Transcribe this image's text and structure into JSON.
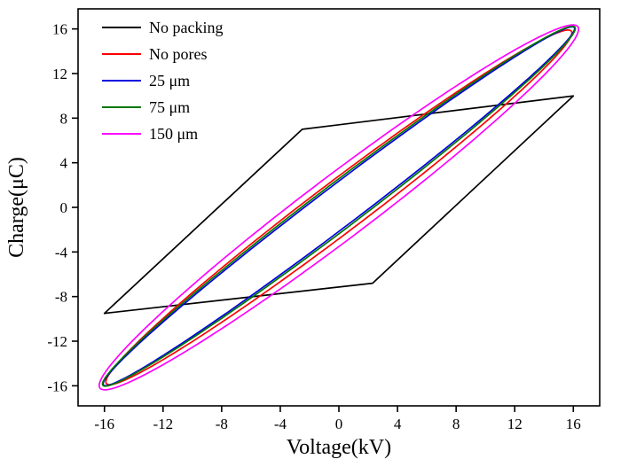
{
  "chart_data": {
    "type": "line",
    "title": "",
    "xlabel": "Voltage(kV)",
    "ylabel": "Charge(μC)",
    "xlim": [
      -17.8,
      17.8
    ],
    "ylim": [
      -17.8,
      17.8
    ],
    "xticks": [
      -16,
      -12,
      -8,
      -4,
      0,
      4,
      8,
      12,
      16
    ],
    "yticks": [
      -16,
      -12,
      -8,
      -4,
      0,
      4,
      8,
      12,
      16
    ],
    "grid": false,
    "legend_position": "top-left",
    "series": [
      {
        "name": "No packing",
        "color": "#000000",
        "shape": "polygon",
        "points": [
          [
            -16.0,
            -9.5
          ],
          [
            -2.5,
            7.0
          ],
          [
            16.0,
            10.0
          ],
          [
            2.3,
            -6.8
          ]
        ]
      },
      {
        "name": "No pores",
        "color": "#ff0000",
        "shape": "ellipse",
        "ellipse": {
          "cx": 0,
          "cy": 0.0,
          "a": 22.4,
          "b": 2.0,
          "rot_deg": 45
        },
        "extremes": {
          "x_range": [
            -15.9,
            15.9
          ],
          "y_range": [
            -15.8,
            15.8
          ]
        }
      },
      {
        "name": "25 μm",
        "color": "#0000dd",
        "shape": "ellipse",
        "ellipse": {
          "cx": 0,
          "cy": 0.1,
          "a": 22.7,
          "b": 1.6,
          "rot_deg": 45
        },
        "extremes": {
          "x_range": [
            -16.1,
            16.1
          ],
          "y_range": [
            -16.0,
            16.2
          ]
        }
      },
      {
        "name": "75 μm",
        "color": "#007700",
        "shape": "ellipse",
        "ellipse": {
          "cx": 0,
          "cy": 0.1,
          "a": 22.75,
          "b": 1.75,
          "rot_deg": 45
        },
        "extremes": {
          "x_range": [
            -16.1,
            16.1
          ],
          "y_range": [
            -16.0,
            16.2
          ]
        }
      },
      {
        "name": "150 μm",
        "color": "#ff00ff",
        "shape": "ellipse",
        "ellipse": {
          "cx": 0,
          "cy": 0.0,
          "a": 23.0,
          "b": 2.5,
          "rot_deg": 45
        },
        "extremes": {
          "x_range": [
            -16.4,
            16.4
          ],
          "y_range": [
            -16.3,
            16.3
          ]
        }
      }
    ]
  },
  "layout_labels": {
    "x_axis_title": "Voltage(kV)",
    "y_axis_title": "Charge(μC)"
  }
}
